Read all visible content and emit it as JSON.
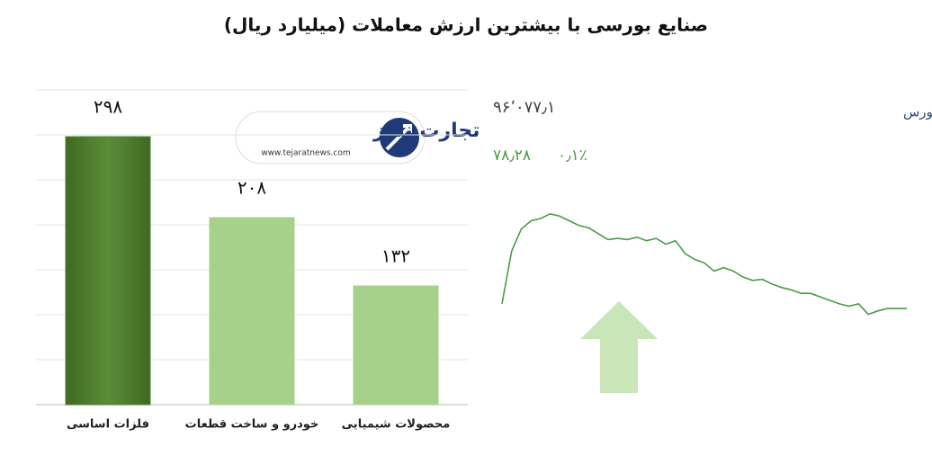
{
  "chart_data": [
    {
      "type": "bar",
      "title": "صنایع بورسی با بیشترین ارزش معاملات  (میلیارد ریال)",
      "categories": [
        "فلزات اساسی",
        "خودرو و ساخت قطعات",
        "محصولات شیمیایی"
      ],
      "values": [
        298,
        208,
        132
      ],
      "value_labels": [
        "۲۹۸",
        "۲۰۸",
        "۱۳۲"
      ],
      "colors": [
        "#4f7f2f",
        "#a6d18b",
        "#a6d18b"
      ],
      "ylim": [
        0,
        350
      ],
      "yticks": [
        0,
        50,
        100,
        150,
        200,
        250,
        300,
        350
      ],
      "grid": true
    },
    {
      "type": "line",
      "title": "کل بورس",
      "index": "۹۶٬۰۷۷٫۱",
      "change": "۷۸٫۲۸",
      "change_percent": "۰٫۱٪",
      "color": "#4a9a4a",
      "values": [
        17,
        62,
        81,
        88,
        90,
        94,
        92,
        88,
        84,
        82,
        77,
        72,
        73,
        72,
        74,
        71,
        73,
        68,
        71,
        60,
        55,
        52,
        45,
        48,
        45,
        40,
        37,
        38,
        34,
        31,
        29,
        26,
        26,
        23,
        20,
        17,
        15,
        17,
        8,
        11,
        13,
        13,
        13
      ],
      "ylim": [
        0,
        100
      ]
    }
  ],
  "watermark": {
    "name": "تجارت نیوز",
    "url": "www.tejaratnews.com"
  }
}
